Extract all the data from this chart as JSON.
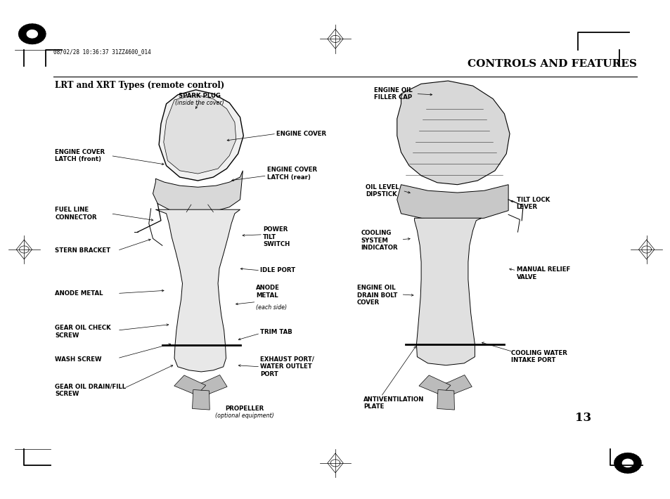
{
  "bg_color": "#ffffff",
  "page_width": 9.54,
  "page_height": 7.1,
  "header_text": "08/02/28 10:36:37 31ZZ4600_014",
  "title": "CONTROLS AND FEATURES",
  "subtitle": "LRT and XRT Types (remote control)",
  "page_number": "13"
}
